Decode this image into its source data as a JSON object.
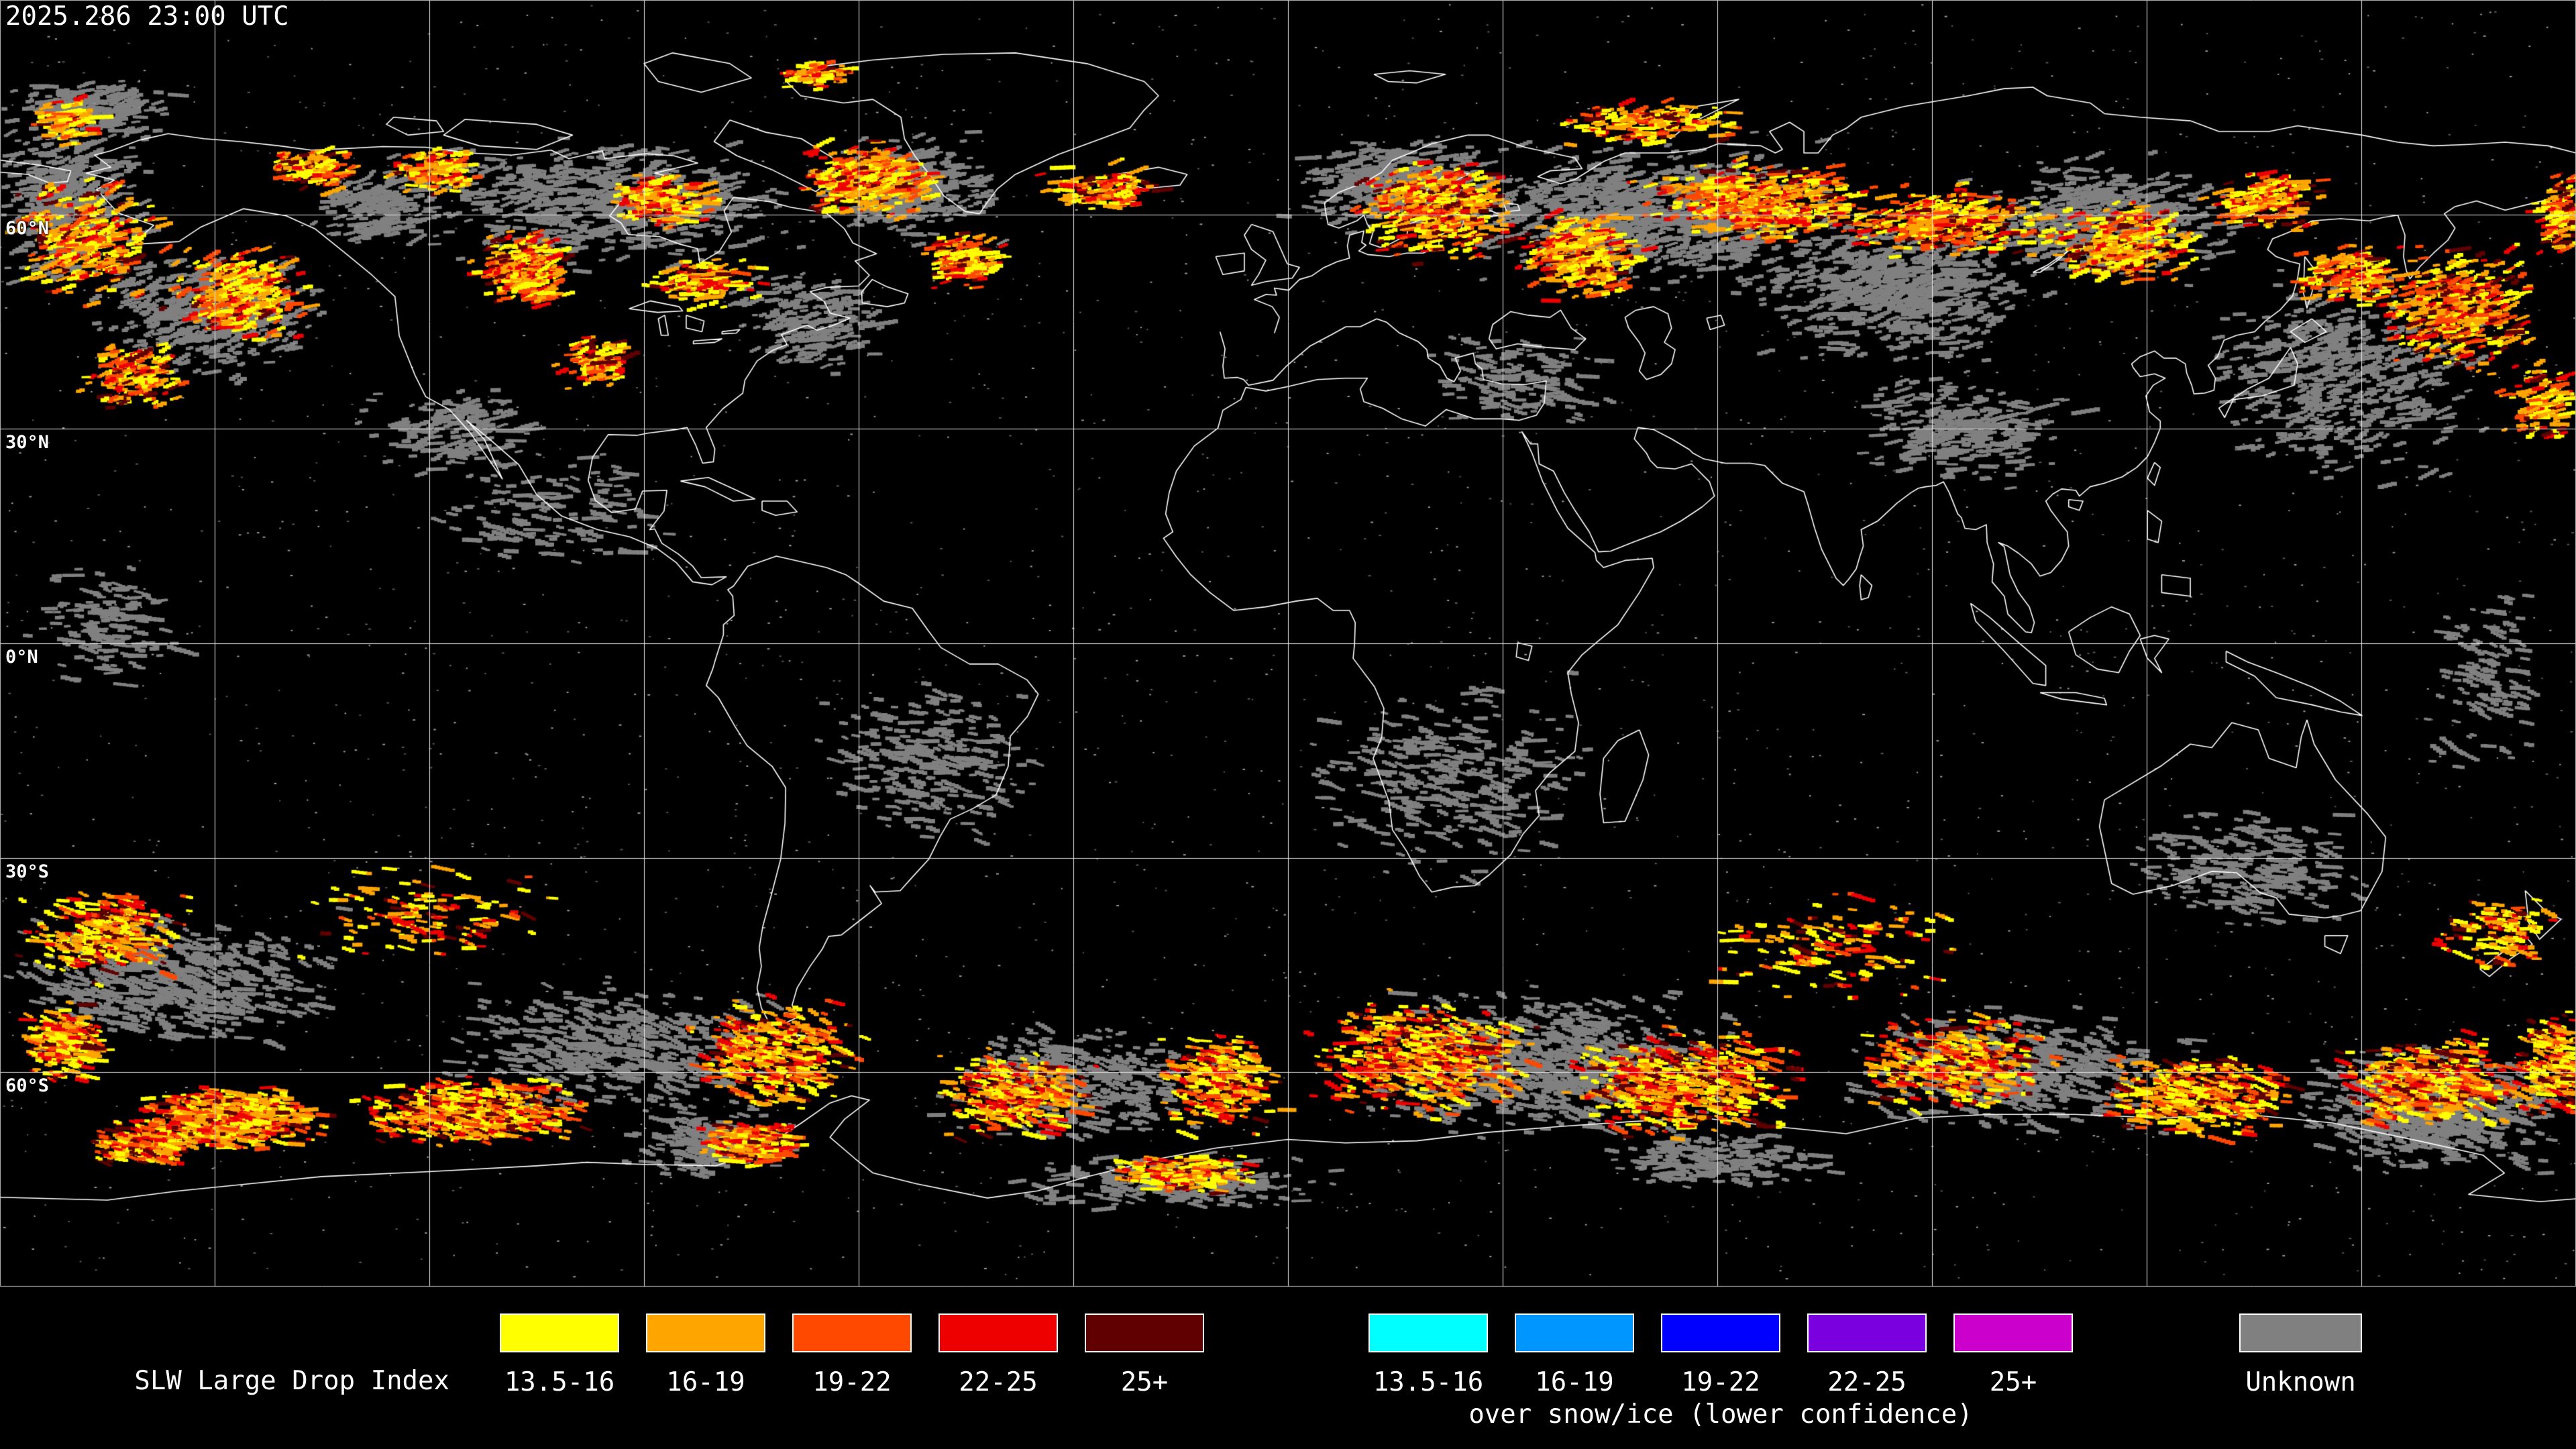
{
  "header": {
    "timestamp": "2025.286 23:00 UTC"
  },
  "map": {
    "latitude_labels": [
      {
        "lat": 60,
        "label": "60°N"
      },
      {
        "lat": 30,
        "label": "30°N"
      },
      {
        "lat": 0,
        "label": "0°N"
      },
      {
        "lat": -30,
        "label": "30°S"
      },
      {
        "lat": -60,
        "label": "60°S"
      }
    ],
    "grid": {
      "lon_step_deg": 30,
      "lat_step_deg": 30,
      "color": "#E8E8E8"
    },
    "colors": {
      "background": "#000000",
      "coastline": "#FFFFFF",
      "noise_dim": "#5A5A5A",
      "noise_bright": "#9A9A9A"
    }
  },
  "legend": {
    "title": "SLW Large Drop Index",
    "standard": {
      "entries": [
        {
          "label": "13.5-16",
          "color": "#FFFF00"
        },
        {
          "label": "16-19",
          "color": "#FFA500"
        },
        {
          "label": "19-22",
          "color": "#FF4800"
        },
        {
          "label": "22-25",
          "color": "#EE0000"
        },
        {
          "label": "25+",
          "color": "#600000"
        }
      ]
    },
    "snow_ice": {
      "subtitle": "over snow/ice (lower confidence)",
      "entries": [
        {
          "label": "13.5-16",
          "color": "#00FFFF"
        },
        {
          "label": "16-19",
          "color": "#0096FF"
        },
        {
          "label": "19-22",
          "color": "#0000FF"
        },
        {
          "label": "22-25",
          "color": "#7B00DF"
        },
        {
          "label": "25+",
          "color": "#CC00CC"
        }
      ]
    },
    "unknown": {
      "label": "Unknown",
      "color": "#808080"
    }
  }
}
